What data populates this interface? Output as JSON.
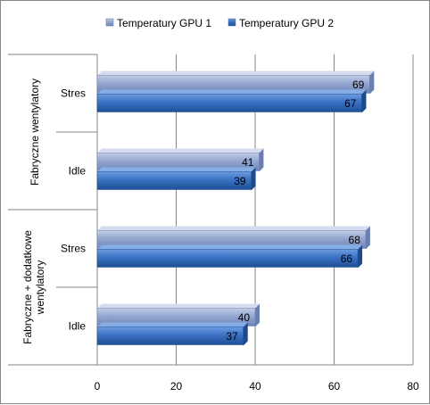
{
  "chart_data": {
    "type": "bar",
    "orientation": "horizontal",
    "title": "",
    "xlabel": "",
    "ylabel": "",
    "xlim": [
      0,
      80
    ],
    "x_ticks": [
      "0",
      "20",
      "40",
      "60",
      "80"
    ],
    "grid": true,
    "legend_position": "top",
    "groups": [
      {
        "label": "Fabryczne  wentylatory",
        "categories": [
          "Stres",
          "Idle"
        ]
      },
      {
        "label": "Fabryczne + dodatkowe wentylatory",
        "categories": [
          "Stres",
          "Idle"
        ]
      }
    ],
    "categories": [
      "Fabryczne  wentylatory – Stres",
      "Fabryczne  wentylatory – Idle",
      "Fabryczne + dodatkowe wentylatory – Stres",
      "Fabryczne + dodatkowe wentylatory – Idle"
    ],
    "series": [
      {
        "name": "Temperatury GPU 1",
        "color": "#8a9ec9",
        "values": [
          69,
          41,
          68,
          40
        ]
      },
      {
        "name": "Temperatury GPU 2",
        "color": "#2e64b0",
        "values": [
          67,
          39,
          66,
          37
        ]
      }
    ]
  }
}
